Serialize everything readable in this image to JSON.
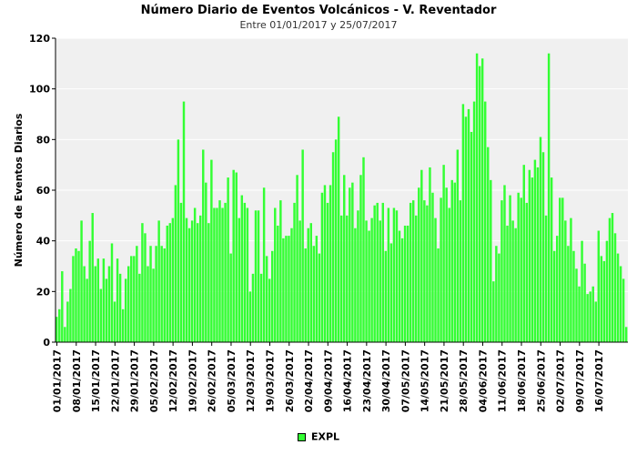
{
  "title": "Número Diario de Eventos Volcánicos -  V. Reventador",
  "subtitle": "Entre 01/01/2017 y 25/07/2017",
  "colors": {
    "bar": "#33ff33",
    "plot_bg": "#f0f0f0",
    "grid": "#ffffff"
  },
  "chart_data": {
    "type": "bar",
    "ylabel": "Número de Eventos Diarios",
    "xlabel": "",
    "ylim": [
      0,
      120
    ],
    "yticks": [
      0,
      20,
      40,
      60,
      80,
      100,
      120
    ],
    "grid": true,
    "legend_position": "bottom",
    "tick_labels": [
      "01/01/2017",
      "08/01/2017",
      "15/01/2017",
      "22/01/2017",
      "29/01/2017",
      "05/02/2017",
      "12/02/2017",
      "19/02/2017",
      "26/02/2017",
      "05/03/2017",
      "12/03/2017",
      "19/03/2017",
      "26/03/2017",
      "02/04/2017",
      "09/04/2017",
      "16/04/2017",
      "23/04/2017",
      "30/04/2017",
      "07/05/2017",
      "14/05/2017",
      "21/05/2017",
      "28/05/2017",
      "04/06/2017",
      "11/06/2017",
      "18/06/2017",
      "25/06/2017",
      "02/07/2017",
      "09/07/2017",
      "16/07/2017"
    ],
    "start_date": "01/01/2017",
    "end_date": "25/07/2017",
    "series": [
      {
        "name": "EXPL",
        "values": [
          10,
          13,
          28,
          6,
          16,
          21,
          34,
          37,
          36,
          48,
          30,
          25,
          40,
          51,
          30,
          33,
          21,
          33,
          25,
          30,
          39,
          16,
          33,
          27,
          13,
          25,
          30,
          34,
          34,
          38,
          27,
          47,
          43,
          30,
          38,
          29,
          38,
          48,
          38,
          37,
          46,
          47,
          49,
          62,
          80,
          55,
          95,
          49,
          45,
          48,
          53,
          47,
          50,
          76,
          63,
          47,
          72,
          53,
          53,
          56,
          53,
          55,
          65,
          35,
          68,
          67,
          49,
          58,
          55,
          53,
          20,
          27,
          52,
          52,
          27,
          61,
          34,
          25,
          36,
          53,
          46,
          56,
          41,
          42,
          42,
          45,
          55,
          66,
          48,
          76,
          37,
          45,
          47,
          38,
          42,
          35,
          59,
          62,
          55,
          62,
          75,
          80,
          89,
          50,
          66,
          50,
          61,
          63,
          45,
          52,
          66,
          73,
          48,
          44,
          49,
          54,
          55,
          48,
          55,
          36,
          53,
          39,
          53,
          52,
          44,
          41,
          46,
          46,
          55,
          56,
          50,
          61,
          68,
          56,
          54,
          69,
          59,
          49,
          37,
          57,
          70,
          61,
          53,
          64,
          63,
          76,
          56,
          94,
          89,
          92,
          83,
          95,
          114,
          109,
          112,
          95,
          77,
          64,
          24,
          38,
          35,
          56,
          62,
          46,
          58,
          48,
          45,
          59,
          57,
          70,
          55,
          68,
          65,
          72,
          69,
          81,
          75,
          50,
          114,
          65,
          36,
          42,
          57,
          57,
          48,
          38,
          49,
          36,
          29,
          22,
          40,
          31,
          19,
          20,
          22,
          16,
          44,
          34,
          32,
          40,
          49,
          51,
          43,
          35,
          30,
          25,
          6
        ]
      }
    ]
  }
}
